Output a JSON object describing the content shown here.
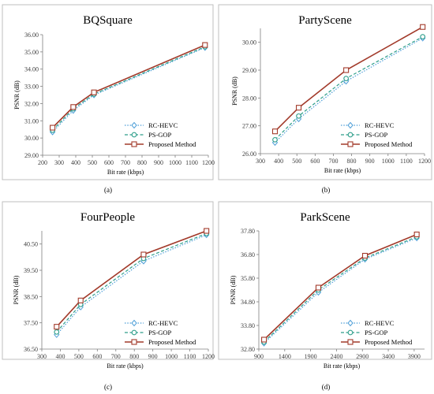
{
  "colors": {
    "rc_hevc": "#4f9fd8",
    "ps_gop": "#2e9e8a",
    "proposed": "#a23a2a"
  },
  "chart_data": [
    {
      "type": "line",
      "panel_label": "(a)",
      "title": "BQSquare",
      "xlabel": "Bit rate (kbps)",
      "ylabel": "PSNR (dB)",
      "xlim": [
        200,
        1200
      ],
      "ylim": [
        29.0,
        36.0
      ],
      "xticks": [
        200,
        300,
        400,
        500,
        600,
        700,
        800,
        900,
        1000,
        1100,
        1200
      ],
      "yticks": [
        29.0,
        30.0,
        31.0,
        32.0,
        33.0,
        34.0,
        35.0,
        36.0
      ],
      "ytick_labels": [
        "29.00",
        "30.00",
        "31.00",
        "32.00",
        "33.00",
        "34.00",
        "35.00",
        "36.00"
      ],
      "legend_position": "lower-right",
      "series": [
        {
          "name": "RC-HEVC",
          "style": "dotted",
          "marker": "diamond",
          "x": [
            260,
            385,
            510,
            1180
          ],
          "y": [
            30.35,
            31.6,
            32.5,
            35.25
          ]
        },
        {
          "name": "PS-GOP",
          "style": "dashed",
          "marker": "circle",
          "x": [
            260,
            385,
            510,
            1180
          ],
          "y": [
            30.45,
            31.7,
            32.55,
            35.3
          ]
        },
        {
          "name": "Proposed Method",
          "style": "solid",
          "marker": "square",
          "x": [
            260,
            385,
            510,
            1180
          ],
          "y": [
            30.6,
            31.8,
            32.65,
            35.4
          ]
        }
      ]
    },
    {
      "type": "line",
      "panel_label": "(b)",
      "title": "PartyScene",
      "xlabel": "Bit rate (kbps)",
      "ylabel": "PSNR (dB)",
      "xlim": [
        300,
        1200
      ],
      "ylim": [
        26.0,
        30.5
      ],
      "xticks": [
        300,
        400,
        500,
        600,
        700,
        800,
        900,
        1000,
        1100,
        1200
      ],
      "yticks": [
        26.0,
        27.0,
        28.0,
        29.0,
        30.0
      ],
      "ytick_labels": [
        "26.00",
        "27.00",
        "28.00",
        "29.00",
        "30.00"
      ],
      "legend_position": "lower-right",
      "series": [
        {
          "name": "RC-HEVC",
          "style": "dotted",
          "marker": "diamond",
          "x": [
            380,
            510,
            770,
            1190
          ],
          "y": [
            26.4,
            27.25,
            28.6,
            30.15
          ]
        },
        {
          "name": "PS-GOP",
          "style": "dashed",
          "marker": "circle",
          "x": [
            380,
            510,
            770,
            1190
          ],
          "y": [
            26.5,
            27.35,
            28.7,
            30.2
          ]
        },
        {
          "name": "Proposed Method",
          "style": "solid",
          "marker": "square",
          "x": [
            380,
            510,
            770,
            1190
          ],
          "y": [
            26.8,
            27.65,
            29.0,
            30.55
          ]
        }
      ]
    },
    {
      "type": "line",
      "panel_label": "(c)",
      "title": "FourPeople",
      "xlabel": "Bit rate (kbps)",
      "ylabel": "PSNR (dB)",
      "xlim": [
        300,
        1200
      ],
      "ylim": [
        36.5,
        41.0
      ],
      "xticks": [
        300,
        400,
        500,
        600,
        700,
        800,
        900,
        1000,
        1100,
        1200
      ],
      "yticks": [
        36.5,
        37.5,
        38.5,
        39.5,
        40.5
      ],
      "ytick_labels": [
        "36.50",
        "37.50",
        "38.50",
        "39.50",
        "40.50"
      ],
      "legend_position": "lower-right",
      "series": [
        {
          "name": "RC-HEVC",
          "style": "dotted",
          "marker": "diamond",
          "x": [
            380,
            510,
            850,
            1190
          ],
          "y": [
            37.05,
            38.1,
            39.85,
            40.85
          ]
        },
        {
          "name": "PS-GOP",
          "style": "dashed",
          "marker": "circle",
          "x": [
            380,
            510,
            850,
            1190
          ],
          "y": [
            37.15,
            38.2,
            39.95,
            40.9
          ]
        },
        {
          "name": "Proposed Method",
          "style": "solid",
          "marker": "square",
          "x": [
            380,
            510,
            850,
            1190
          ],
          "y": [
            37.35,
            38.35,
            40.1,
            41.0
          ]
        }
      ]
    },
    {
      "type": "line",
      "panel_label": "(d)",
      "title": "ParkScene",
      "xlabel": "Bit rate (kbps)",
      "ylabel": "PSNR (dB)",
      "xlim": [
        900,
        4100
      ],
      "ylim": [
        32.8,
        37.8
      ],
      "xticks": [
        900,
        1400,
        1900,
        2400,
        2900,
        3400,
        3900
      ],
      "yticks": [
        32.8,
        33.8,
        34.8,
        35.8,
        36.8,
        37.8
      ],
      "ytick_labels": [
        "32.80",
        "33.80",
        "34.80",
        "35.80",
        "36.80",
        "37.80"
      ],
      "legend_position": "lower-right",
      "series": [
        {
          "name": "RC-HEVC",
          "style": "dotted",
          "marker": "diamond",
          "x": [
            1000,
            2050,
            2950,
            3950
          ],
          "y": [
            33.05,
            35.2,
            36.6,
            37.5
          ]
        },
        {
          "name": "PS-GOP",
          "style": "dashed",
          "marker": "circle",
          "x": [
            1000,
            2050,
            2950,
            3950
          ],
          "y": [
            33.1,
            35.3,
            36.65,
            37.55
          ]
        },
        {
          "name": "Proposed Method",
          "style": "solid",
          "marker": "square",
          "x": [
            1000,
            2050,
            2950,
            3950
          ],
          "y": [
            33.2,
            35.4,
            36.75,
            37.65
          ]
        }
      ]
    }
  ]
}
